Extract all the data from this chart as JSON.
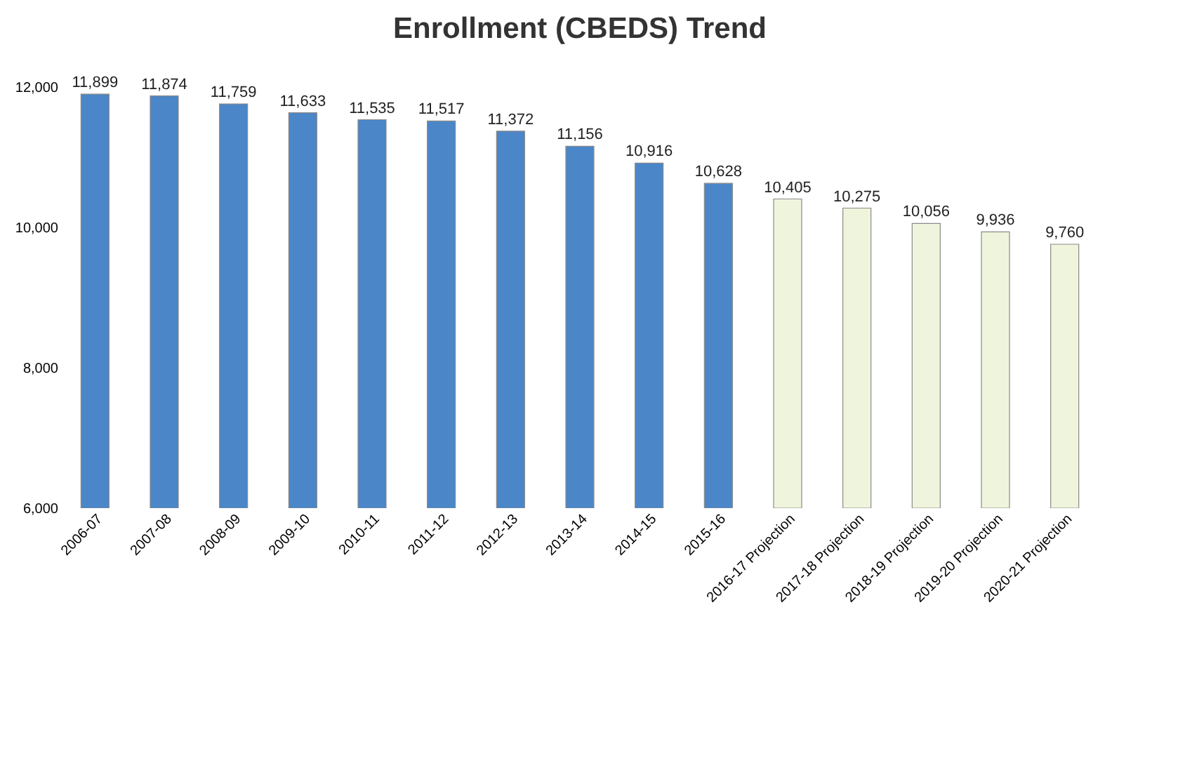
{
  "chart_data": {
    "type": "bar",
    "title": "Enrollment (CBEDS) Trend",
    "categories": [
      "2006-07",
      "2007-08",
      "2008-09",
      "2009-10",
      "2010-11",
      "2011-12",
      "2012-13",
      "2013-14",
      "2014-15",
      "2015-16",
      "2016-17 Projection",
      "2017-18 Projection",
      "2018-19 Projection",
      "2019-20 Projection",
      "2020-21 Projection"
    ],
    "values": [
      11899,
      11874,
      11759,
      11633,
      11535,
      11517,
      11372,
      11156,
      10916,
      10628,
      10405,
      10275,
      10056,
      9936,
      9760
    ],
    "value_labels": [
      "11,899",
      "11,874",
      "11,759",
      "11,633",
      "11,535",
      "11,517",
      "11,372",
      "11,156",
      "10,916",
      "10,628",
      "10,405",
      "10,275",
      "10,056",
      "9,936",
      "9,760"
    ],
    "colors": [
      "#4a86c8",
      "#4a86c8",
      "#4a86c8",
      "#4a86c8",
      "#4a86c8",
      "#4a86c8",
      "#4a86c8",
      "#4a86c8",
      "#4a86c8",
      "#4a86c8",
      "#eef5dc",
      "#eef5dc",
      "#eef5dc",
      "#eef5dc",
      "#eef5dc"
    ],
    "ylim": [
      6000,
      12000
    ],
    "yticks": [
      {
        "value": 6000,
        "label": "6,000"
      },
      {
        "value": 8000,
        "label": "8,000"
      },
      {
        "value": 10000,
        "label": "10,000"
      },
      {
        "value": 12000,
        "label": "12,000"
      }
    ],
    "grid": false,
    "legend": false
  }
}
